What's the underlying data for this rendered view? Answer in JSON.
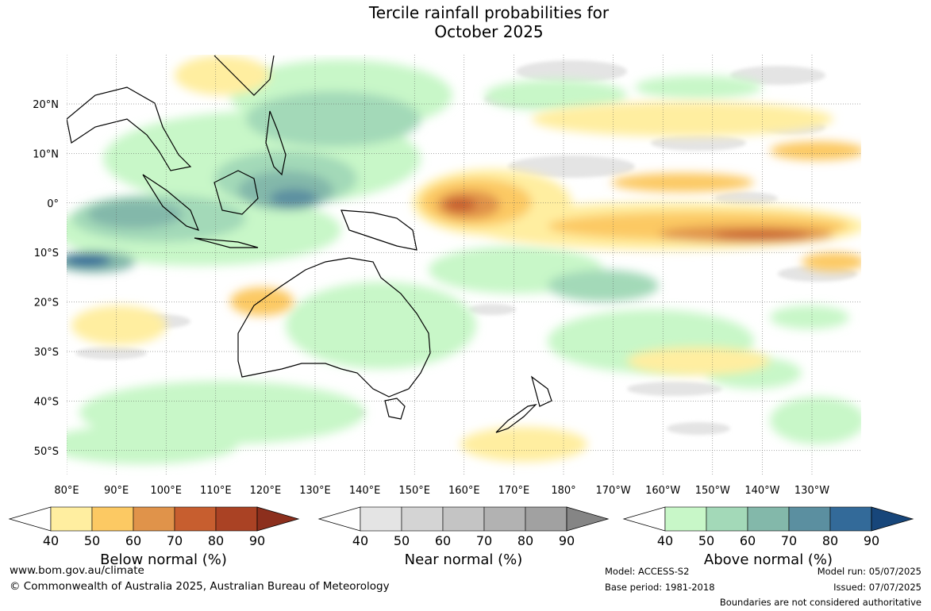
{
  "title": [
    "Tercile rainfall probabilities for",
    "October 2025"
  ],
  "lat_labels": [
    "20°N",
    "10°N",
    "0°",
    "10°S",
    "20°S",
    "30°S",
    "40°S",
    "50°S"
  ],
  "lon_labels": [
    "80°E",
    "90°E",
    "100°E",
    "110°E",
    "120°E",
    "130°E",
    "140°E",
    "150°E",
    "160°E",
    "170°E",
    "180°",
    "170°W",
    "160°W",
    "150°W",
    "140°W",
    "130°W"
  ],
  "colorbars": [
    {
      "label": "Below normal (%)",
      "ticks": [
        "40",
        "50",
        "60",
        "70",
        "80",
        "90"
      ],
      "colors": [
        "#ffeea0",
        "#fcc963",
        "#e0934a",
        "#c75e2f",
        "#aa4224",
        "#8c2f1d"
      ]
    },
    {
      "label": "Near normal (%)",
      "ticks": [
        "40",
        "50",
        "60",
        "70",
        "80",
        "90"
      ],
      "colors": [
        "#e4e4e4",
        "#d4d4d4",
        "#c4c4c4",
        "#b2b2b2",
        "#a1a1a1",
        "#858585"
      ]
    },
    {
      "label": "Above normal (%)",
      "ticks": [
        "40",
        "50",
        "60",
        "70",
        "80",
        "90"
      ],
      "colors": [
        "#c8f7c8",
        "#a3d9b8",
        "#83b8aa",
        "#5b8fa0",
        "#336a99",
        "#17467a"
      ]
    }
  ],
  "footer": {
    "url": "www.bom.gov.au/climate",
    "copyright": "© Commonwealth of Australia 2025, Australian Bureau of Meteorology",
    "model": "Model: ACCESS-S2",
    "base_period": "Base period: 1981-2018",
    "model_run": "Model run: 05/07/2025",
    "issued": "Issued: 07/07/2025",
    "disclaimer": "Boundaries are not considered authoritative"
  }
}
